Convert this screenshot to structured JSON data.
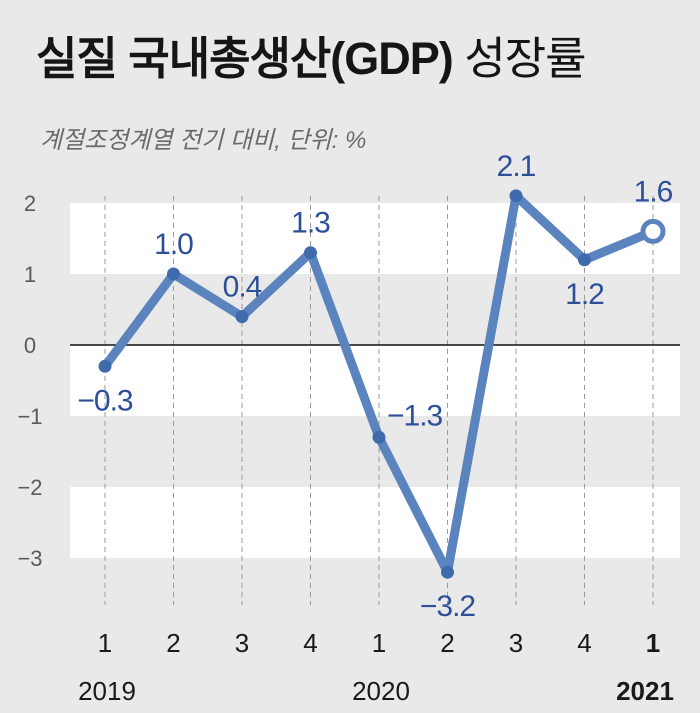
{
  "title": "실질 국내총생산(GDP)",
  "title_suffix": "성장률",
  "subtitle": "계절조정계열  전기 대비, 단위: %",
  "chart_data": {
    "type": "line",
    "categories": [
      "1",
      "2",
      "3",
      "4",
      "1",
      "2",
      "3",
      "4",
      "1"
    ],
    "years": [
      {
        "label": "2019",
        "start_index": 0,
        "bold": false
      },
      {
        "label": "2020",
        "start_index": 4,
        "bold": false
      },
      {
        "label": "2021",
        "start_index": 8,
        "bold": true
      }
    ],
    "series": [
      {
        "values": [
          -0.3,
          1.0,
          0.4,
          1.3,
          -1.3,
          -3.2,
          2.1,
          1.2,
          1.6
        ],
        "labels": [
          "−0.3",
          "1.0",
          "0.4",
          "1.3",
          "−1.3",
          "−3.2",
          "2.1",
          "1.2",
          "1.6"
        ]
      }
    ],
    "yticks": [
      2,
      1,
      0,
      -1,
      -2,
      -3
    ],
    "ytick_labels": [
      "2",
      "1",
      "0",
      "−1",
      "−2",
      "−3"
    ],
    "ylim": [
      -3.3,
      2.1
    ],
    "line_color": "#5b84be",
    "label_color": "#2d4f9a",
    "background_color": "#e9e9e9",
    "band_color": "#ffffff"
  }
}
